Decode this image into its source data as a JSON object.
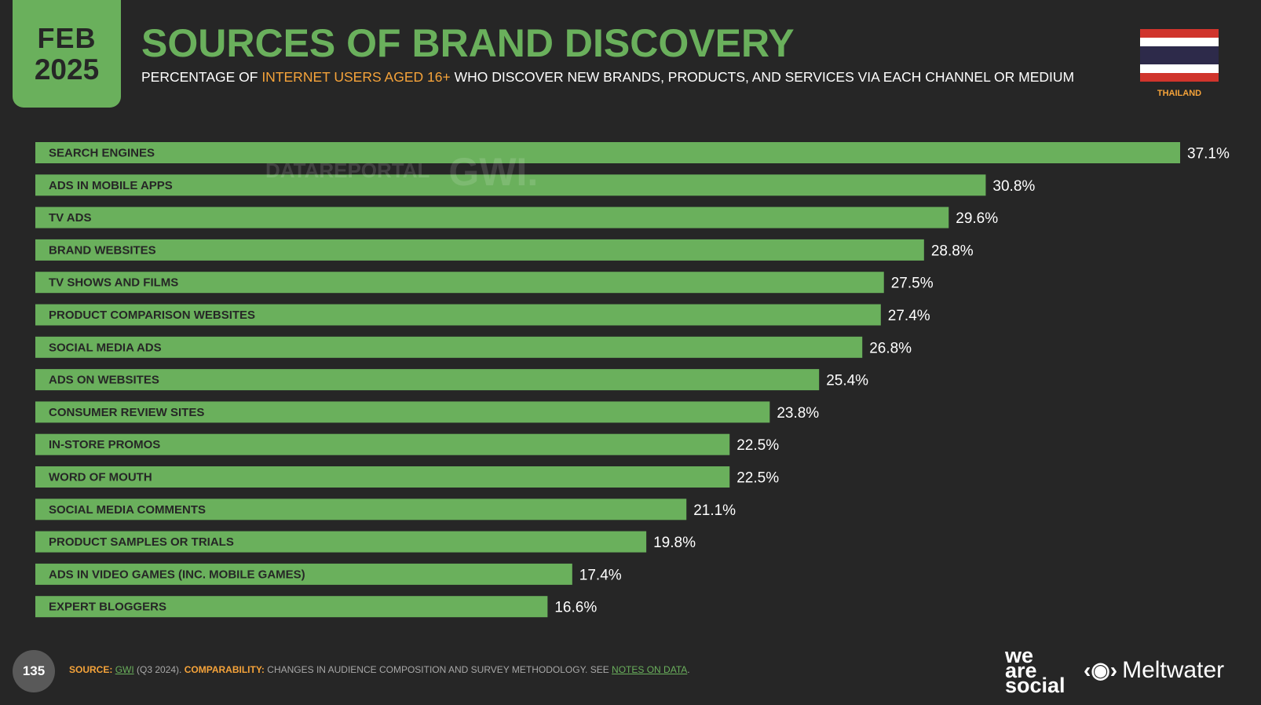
{
  "header": {
    "month": "FEB",
    "year": "2025",
    "title": "SOURCES OF BRAND DISCOVERY",
    "subtitle_pre": "PERCENTAGE OF ",
    "subtitle_highlight": "INTERNET USERS AGED 16+",
    "subtitle_post": " WHO DISCOVER NEW BRANDS, PRODUCTS, AND SERVICES VIA EACH CHANNEL OR MEDIUM",
    "country": "THAILAND",
    "flag_icon": "thailand-flag-icon"
  },
  "watermark": {
    "datareportal": "DATAREPORTAL",
    "gwi": "GWI."
  },
  "colors": {
    "background": "#262626",
    "accent_green": "#6ab05c",
    "accent_orange": "#f5a33a",
    "flag_red": "#d0342c",
    "flag_white": "#ffffff",
    "flag_blue": "#2d2a4a"
  },
  "chart_data": {
    "type": "bar",
    "orientation": "horizontal",
    "categories": [
      "SEARCH ENGINES",
      "ADS IN MOBILE APPS",
      "TV ADS",
      "BRAND WEBSITES",
      "TV SHOWS AND FILMS",
      "PRODUCT COMPARISON WEBSITES",
      "SOCIAL MEDIA ADS",
      "ADS ON WEBSITES",
      "CONSUMER REVIEW SITES",
      "IN-STORE PROMOS",
      "WORD OF MOUTH",
      "SOCIAL MEDIA COMMENTS",
      "PRODUCT SAMPLES OR TRIALS",
      "ADS IN VIDEO GAMES (INC. MOBILE GAMES)",
      "EXPERT BLOGGERS"
    ],
    "values": [
      37.1,
      30.8,
      29.6,
      28.8,
      27.5,
      27.4,
      26.8,
      25.4,
      23.8,
      22.5,
      22.5,
      21.1,
      19.8,
      17.4,
      16.6
    ],
    "value_labels": [
      "37.1%",
      "30.8%",
      "29.6%",
      "28.8%",
      "27.5%",
      "27.4%",
      "26.8%",
      "25.4%",
      "23.8%",
      "22.5%",
      "22.5%",
      "21.1%",
      "19.8%",
      "17.4%",
      "16.6%"
    ],
    "unit": "%",
    "grid": false,
    "legend": "none"
  },
  "footer": {
    "page_number": "135",
    "source_label": "SOURCE:",
    "source_gwi": "GWI",
    "source_period": " (Q3 2024). ",
    "comparability_label": "COMPARABILITY:",
    "comparability_text": " CHANGES IN AUDIENCE COMPOSITION AND SURVEY METHODOLOGY. SEE ",
    "notes_link": "NOTES ON DATA",
    "notes_end": ".",
    "brand1_line1": "we",
    "brand1_line2": "are",
    "brand1_line3": "social",
    "brand2": "Meltwater",
    "brand2_icon": "meltwater-logo-icon"
  }
}
